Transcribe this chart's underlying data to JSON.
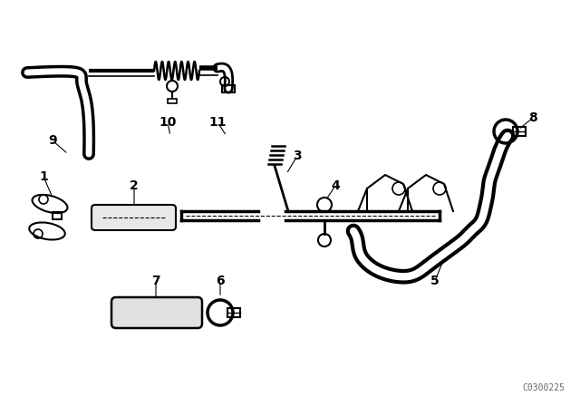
{
  "bg_color": "#ffffff",
  "line_color": "#000000",
  "watermark": "C0300225",
  "figsize": [
    6.4,
    4.48
  ],
  "dpi": 100
}
